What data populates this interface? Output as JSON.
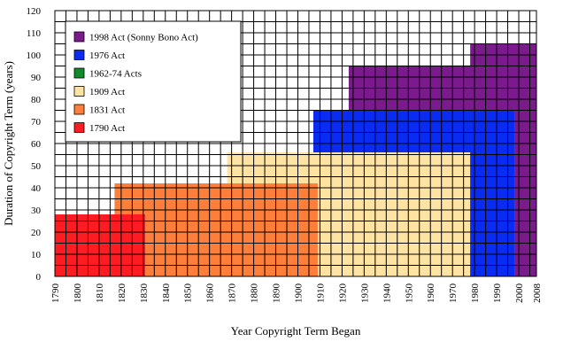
{
  "chart_data": {
    "type": "area",
    "xlabel": "Year Copyright Term Began",
    "ylabel": "Duration of Copyright Term (years)",
    "xlim": [
      1790,
      2008
    ],
    "ylim": [
      0,
      120
    ],
    "x_ticks": [
      1790,
      1800,
      1810,
      1820,
      1830,
      1840,
      1850,
      1860,
      1870,
      1880,
      1890,
      1900,
      1910,
      1920,
      1930,
      1940,
      1950,
      1960,
      1970,
      1980,
      1990,
      2000,
      2008
    ],
    "y_ticks": [
      0,
      10,
      20,
      30,
      40,
      50,
      60,
      70,
      80,
      90,
      100,
      110,
      120
    ],
    "grid": true,
    "legend_position": "top-left",
    "series": [
      {
        "name": "1998 Act (Sonny Bono Act)",
        "color": "#7a1a8c",
        "points": [
          [
            1923,
            75
          ],
          [
            1923,
            95
          ],
          [
            1978,
            95
          ],
          [
            1978,
            105
          ],
          [
            2008,
            105
          ],
          [
            2008,
            0
          ],
          [
            1998,
            0
          ],
          [
            1998,
            75
          ]
        ]
      },
      {
        "name": "1976 Act",
        "color": "#0a2cf2",
        "points": [
          [
            1907,
            56
          ],
          [
            1907,
            75
          ],
          [
            1978,
            75
          ],
          [
            1978,
            85
          ],
          [
            1998,
            85
          ],
          [
            1998,
            0
          ],
          [
            1978,
            0
          ],
          [
            1978,
            56
          ]
        ]
      },
      {
        "name": "1962-74 Acts",
        "color": "#118a2a",
        "points": [
          [
            1907,
            56
          ],
          [
            1907,
            67
          ],
          [
            1917,
            56
          ]
        ]
      },
      {
        "name": "1909 Act",
        "color": "#ffe3a3",
        "points": [
          [
            1909,
            0
          ],
          [
            1909,
            56
          ],
          [
            1868,
            56
          ],
          [
            1868,
            42
          ],
          [
            1909,
            42
          ],
          [
            1909,
            0
          ],
          [
            1978,
            0
          ],
          [
            1978,
            56
          ],
          [
            1909,
            56
          ]
        ]
      },
      {
        "name": "1831 Act",
        "color": "#fe7e3a",
        "points": [
          [
            1817,
            28
          ],
          [
            1817,
            42
          ],
          [
            1909,
            42
          ],
          [
            1909,
            0
          ],
          [
            1831,
            0
          ],
          [
            1831,
            28
          ]
        ]
      },
      {
        "name": "1790 Act",
        "color": "#fe1c22",
        "points": [
          [
            1790,
            0
          ],
          [
            1790,
            28
          ],
          [
            1831,
            28
          ],
          [
            1831,
            0
          ]
        ]
      }
    ]
  }
}
